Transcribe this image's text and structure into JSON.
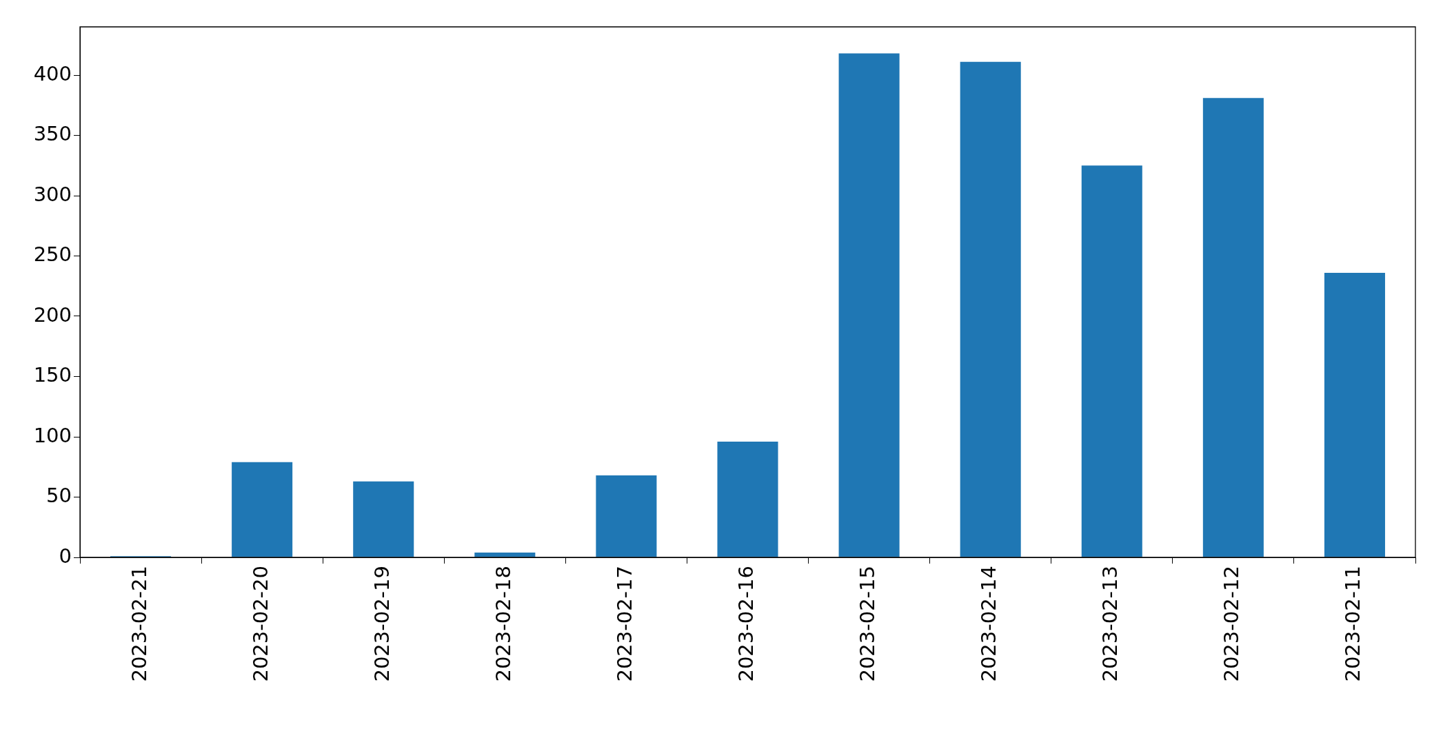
{
  "chart_data": {
    "type": "bar",
    "categories": [
      "2023-02-21",
      "2023-02-20",
      "2023-02-19",
      "2023-02-18",
      "2023-02-17",
      "2023-02-16",
      "2023-02-15",
      "2023-02-14",
      "2023-02-13",
      "2023-02-12",
      "2023-02-11"
    ],
    "values": [
      1,
      79,
      63,
      4,
      68,
      96,
      418,
      411,
      325,
      381,
      236
    ],
    "color": "#1f77b4",
    "ylim": [
      0,
      440
    ],
    "yticks": [
      0,
      50,
      100,
      150,
      200,
      250,
      300,
      350,
      400
    ],
    "grid": false,
    "legend": false
  }
}
